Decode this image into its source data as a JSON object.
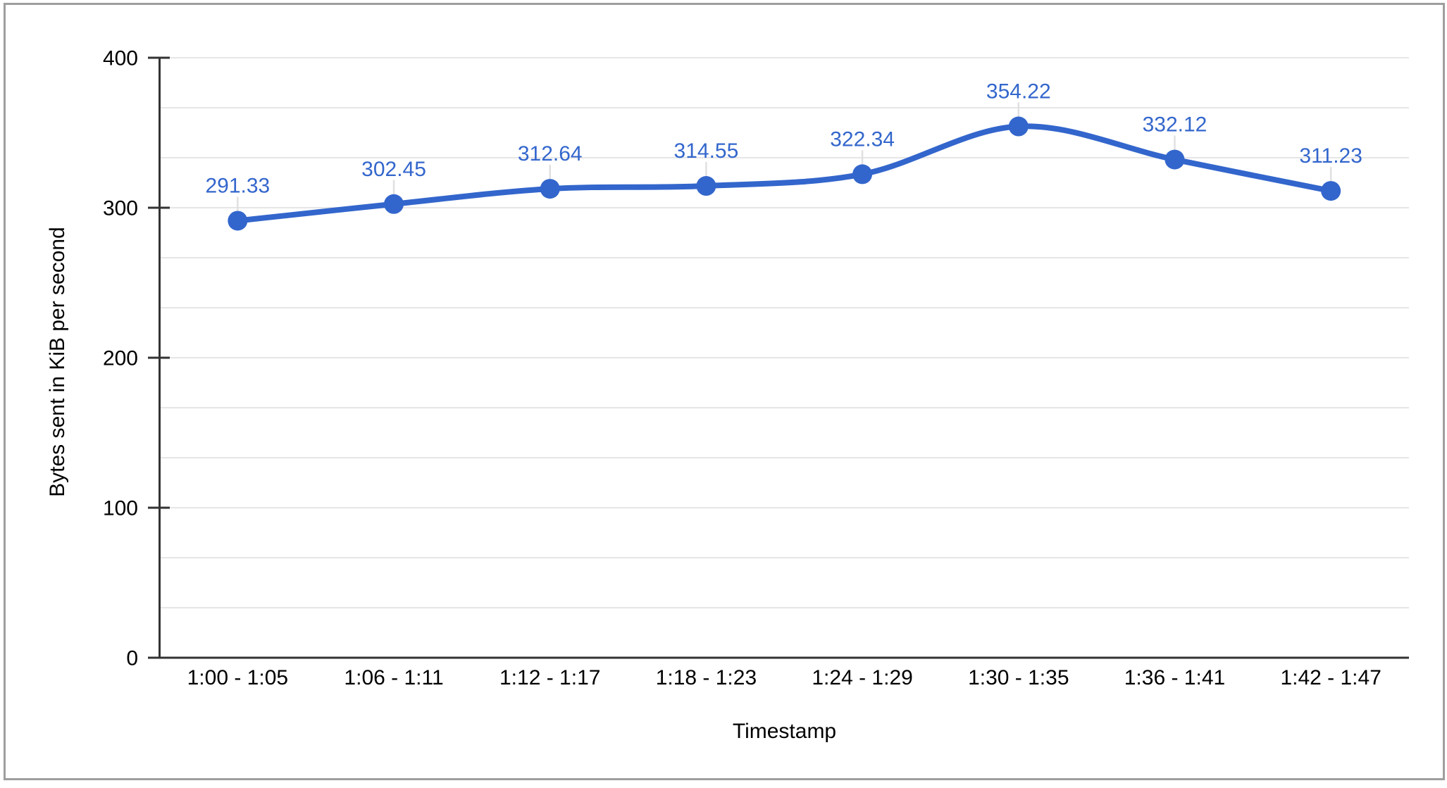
{
  "chart_data": {
    "type": "line",
    "smooth": true,
    "title": "",
    "xlabel": "Timestamp",
    "ylabel": "Bytes sent in KiB per second",
    "categories": [
      "1:00 - 1:05",
      "1:06 - 1:11",
      "1:12 - 1:17",
      "1:18 - 1:23",
      "1:24 - 1:29",
      "1:30 - 1:35",
      "1:36 - 1:41",
      "1:42 - 1:47"
    ],
    "series": [
      {
        "name": "Bytes sent in KiB per second",
        "values": [
          291.33,
          302.45,
          312.64,
          314.55,
          322.34,
          354.22,
          332.12,
          311.23
        ],
        "point_labels": [
          "291.33",
          "302.45",
          "312.64",
          "314.55",
          "322.34",
          "354.22",
          "332.12",
          "311.23"
        ]
      }
    ],
    "ylim": [
      0,
      400
    ],
    "y_major_ticks": [
      0,
      100,
      200,
      300,
      400
    ],
    "y_tick_labels": [
      "0",
      "100",
      "200",
      "300",
      "400"
    ],
    "y_minor_divisions_per_major": 3,
    "grid": "horizontal",
    "legend_position": "none",
    "point_markers": true,
    "colors": {
      "series": "#3366cc",
      "data_label": "#3366cc",
      "gridline": "#e6e6e6",
      "axis_line": "#333333",
      "tick_text": "#000000",
      "leader_line": "#e0e0e0",
      "frame_border": "#9e9e9e",
      "background": "#ffffff"
    }
  }
}
